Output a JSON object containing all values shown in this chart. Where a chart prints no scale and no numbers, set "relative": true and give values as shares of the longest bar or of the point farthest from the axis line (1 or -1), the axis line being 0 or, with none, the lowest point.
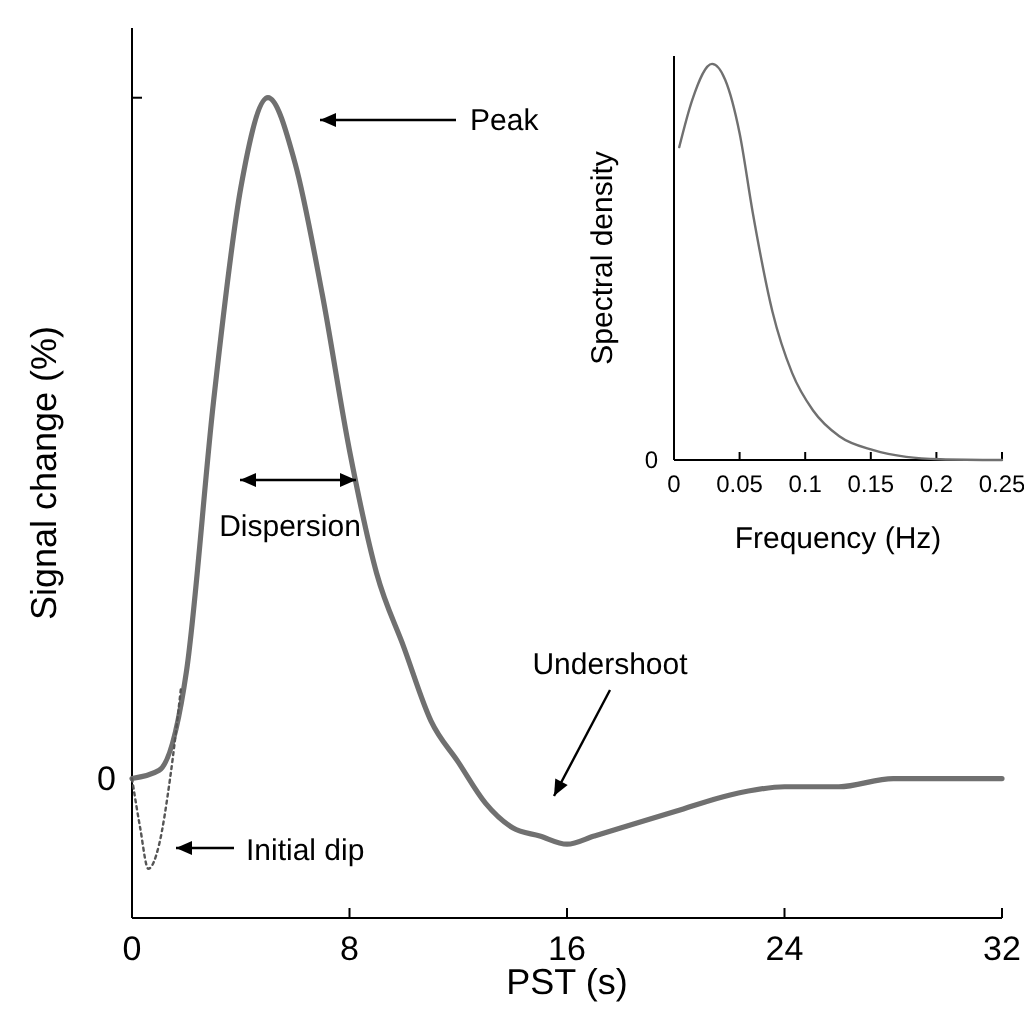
{
  "chart_data": [
    {
      "type": "line",
      "xlabel": "PST (s)",
      "ylabel": "Signal change (%)",
      "relative": true,
      "xlim": [
        0,
        32
      ],
      "xticks": [
        0,
        8,
        16,
        24,
        32
      ],
      "series": [
        {
          "color": "#707070",
          "line_style": "solid",
          "x": [
            0,
            1,
            2,
            3,
            4,
            5,
            6,
            7,
            8,
            9,
            10,
            11,
            12,
            13,
            14,
            15,
            16,
            17,
            18,
            20,
            22,
            24,
            26,
            28,
            30,
            32
          ],
          "values": [
            0.17,
            0.18,
            0.3,
            0.63,
            0.89,
            1,
            0.92,
            0.76,
            0.57,
            0.42,
            0.33,
            0.24,
            0.19,
            0.14,
            0.11,
            0.1,
            0.09,
            0.1,
            0.11,
            0.13,
            0.15,
            0.16,
            0.16,
            0.17,
            0.17,
            0.17
          ]
        },
        {
          "color": "#555555",
          "line_style": "dotted",
          "x": [
            0,
            0.3,
            0.6,
            1,
            1.4,
            1.8
          ],
          "values": [
            0.17,
            0.11,
            0.06,
            0.09,
            0.17,
            0.28
          ]
        }
      ],
      "annotations": [
        "Peak",
        "Dispersion",
        "Undershoot",
        "Initial dip",
        "0"
      ]
    },
    {
      "type": "line",
      "xlabel": "Frequency (Hz)",
      "ylabel": "Spectral density",
      "relative": true,
      "xlim": [
        0,
        0.25
      ],
      "xticks": [
        0,
        0.05,
        0.1,
        0.15,
        0.2,
        0.25
      ],
      "annotations": [
        "0"
      ],
      "series": [
        {
          "color": "#707070",
          "line_style": "solid",
          "x": [
            0.004,
            0.014,
            0.029,
            0.039,
            0.05,
            0.06,
            0.075,
            0.09,
            0.106,
            0.126,
            0.152,
            0.177,
            0.203,
            0.25
          ],
          "values": [
            0.79,
            0.91,
            1,
            0.96,
            0.825,
            0.625,
            0.375,
            0.22,
            0.125,
            0.06,
            0.025,
            0.008,
            0.002,
            0
          ]
        }
      ]
    }
  ]
}
